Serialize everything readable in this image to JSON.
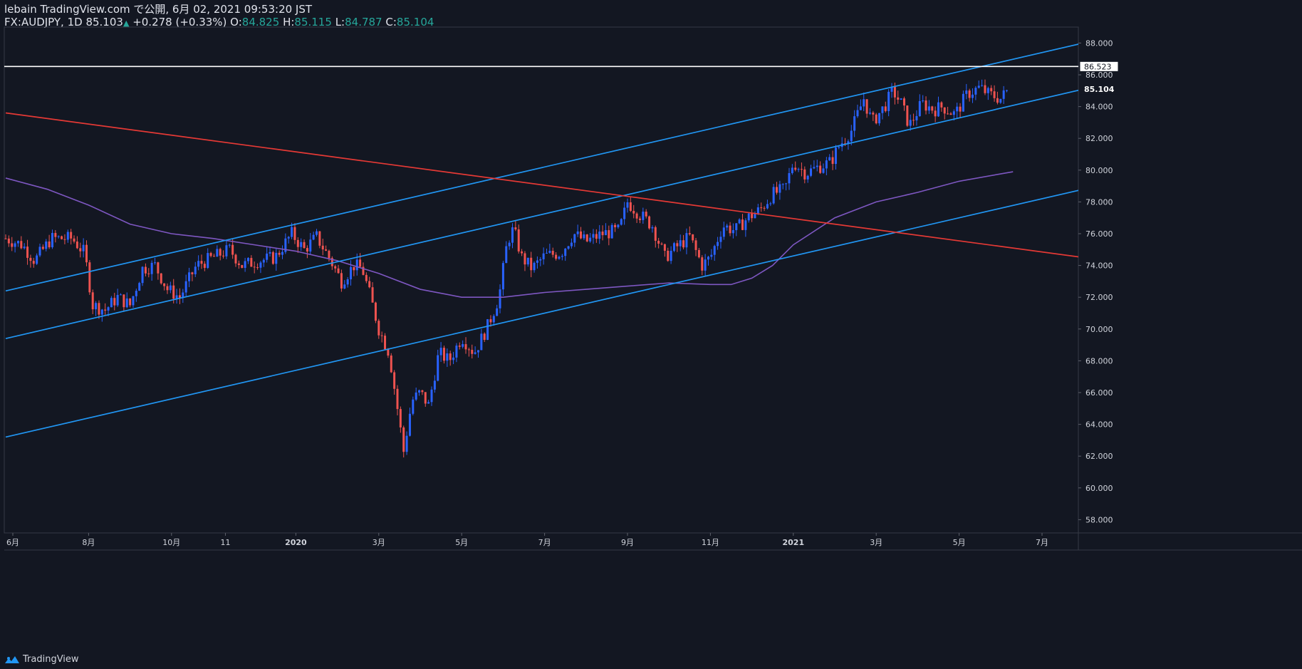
{
  "header": {
    "line1": "lebain TradingView.com で公開, 6月 02, 2021 09:53:20 JST",
    "symbol": "FX:AUDJPY, 1D 85.103",
    "change": "+0.278 (+0.33%)",
    "o_label": "O:",
    "o_value": "84.825",
    "h_label": "H:",
    "h_value": "85.115",
    "l_label": "L:",
    "l_value": "84.787",
    "c_label": "C:",
    "c_value": "85.104"
  },
  "footer": {
    "brand": "TradingView"
  },
  "colors": {
    "background": "#131722",
    "up": "#2962ff",
    "down": "#ef5350",
    "channel": "#2196f3",
    "trendline": "#e53935",
    "ma": "#7e57c2",
    "grid_text": "#d1d4dc",
    "teal": "#26a69a"
  },
  "chart_data": {
    "type": "candlestick",
    "title": "FX:AUDJPY, 1D",
    "y_range": [
      57,
      89
    ],
    "y_ticks": [
      "88.000",
      "86.000",
      "84.000",
      "82.000",
      "80.000",
      "78.000",
      "76.000",
      "74.000",
      "72.000",
      "70.000",
      "68.000",
      "66.000",
      "64.000",
      "62.000",
      "60.000",
      "58.000"
    ],
    "y_tick_values": [
      88,
      86,
      84,
      82,
      80,
      78,
      76,
      74,
      72,
      70,
      68,
      66,
      64,
      62,
      60,
      58
    ],
    "x_range": [
      0,
      26
    ],
    "x_ticks": [
      {
        "label": "6月",
        "t": 0
      },
      {
        "label": "8月",
        "t": 2
      },
      {
        "label": "10月",
        "t": 4
      },
      {
        "label": "11",
        "t": 5.3
      },
      {
        "label": "2020",
        "t": 7
      },
      {
        "label": "3月",
        "t": 9
      },
      {
        "label": "5月",
        "t": 11
      },
      {
        "label": "7月",
        "t": 13
      },
      {
        "label": "9月",
        "t": 15
      },
      {
        "label": "11月",
        "t": 17
      },
      {
        "label": "2021",
        "t": 19
      },
      {
        "label": "3月",
        "t": 21
      },
      {
        "label": "5月",
        "t": 23
      },
      {
        "label": "7月",
        "t": 25
      }
    ],
    "price_path": [
      [
        0,
        75.7
      ],
      [
        0.4,
        75.3
      ],
      [
        0.7,
        74.3
      ],
      [
        1.1,
        75.7
      ],
      [
        1.6,
        75.7
      ],
      [
        1.9,
        74.8
      ],
      [
        2.1,
        71.5
      ],
      [
        2.4,
        71.2
      ],
      [
        2.7,
        72.0
      ],
      [
        3.0,
        71.5
      ],
      [
        3.3,
        73.8
      ],
      [
        3.6,
        74.0
      ],
      [
        3.9,
        72.5
      ],
      [
        4.2,
        72.0
      ],
      [
        4.6,
        74.0
      ],
      [
        5.0,
        74.5
      ],
      [
        5.4,
        75.0
      ],
      [
        5.7,
        74.0
      ],
      [
        6.1,
        74.3
      ],
      [
        6.5,
        74.5
      ],
      [
        6.9,
        76.0
      ],
      [
        7.2,
        75.0
      ],
      [
        7.5,
        75.8
      ],
      [
        7.8,
        74.5
      ],
      [
        8.1,
        73.0
      ],
      [
        8.4,
        74.0
      ],
      [
        8.6,
        73.8
      ],
      [
        8.8,
        72.0
      ],
      [
        9.0,
        70.0
      ],
      [
        9.25,
        68.5
      ],
      [
        9.45,
        65.0
      ],
      [
        9.6,
        62.3
      ],
      [
        9.8,
        65.5
      ],
      [
        10.0,
        66.0
      ],
      [
        10.2,
        65.2
      ],
      [
        10.45,
        68.5
      ],
      [
        10.7,
        68.0
      ],
      [
        11.0,
        69.5
      ],
      [
        11.3,
        68.5
      ],
      [
        11.6,
        70.0
      ],
      [
        11.9,
        72.0
      ],
      [
        12.1,
        75.5
      ],
      [
        12.25,
        76.3
      ],
      [
        12.45,
        74.5
      ],
      [
        12.7,
        73.8
      ],
      [
        13.0,
        74.6
      ],
      [
        13.4,
        74.8
      ],
      [
        13.7,
        76.0
      ],
      [
        14.0,
        75.5
      ],
      [
        14.4,
        76.0
      ],
      [
        14.8,
        76.2
      ],
      [
        15.0,
        78.0
      ],
      [
        15.3,
        77.2
      ],
      [
        15.6,
        76.5
      ],
      [
        15.9,
        74.5
      ],
      [
        16.2,
        75.2
      ],
      [
        16.5,
        75.8
      ],
      [
        16.8,
        74.0
      ],
      [
        17.0,
        74.5
      ],
      [
        17.3,
        76.5
      ],
      [
        17.6,
        76.2
      ],
      [
        17.9,
        77.0
      ],
      [
        18.2,
        77.5
      ],
      [
        18.5,
        78.5
      ],
      [
        18.8,
        78.8
      ],
      [
        19.0,
        80.5
      ],
      [
        19.3,
        79.8
      ],
      [
        19.6,
        80.2
      ],
      [
        19.9,
        80.5
      ],
      [
        20.1,
        81.5
      ],
      [
        20.4,
        82.5
      ],
      [
        20.7,
        84.5
      ],
      [
        20.9,
        83.0
      ],
      [
        21.2,
        84.0
      ],
      [
        21.4,
        85.0
      ],
      [
        21.6,
        84.2
      ],
      [
        21.8,
        82.8
      ],
      [
        22.1,
        84.2
      ],
      [
        22.4,
        83.8
      ],
      [
        22.6,
        84.0
      ],
      [
        22.9,
        83.5
      ],
      [
        23.2,
        84.8
      ],
      [
        23.5,
        85.2
      ],
      [
        23.7,
        84.8
      ],
      [
        24.0,
        84.5
      ],
      [
        24.2,
        85.1
      ]
    ],
    "lines": [
      {
        "name": "upper-channel-line",
        "color": "#2196f3",
        "from": [
          0,
          72.4
        ],
        "to": [
          26,
          88.0
        ]
      },
      {
        "name": "middle-channel-line",
        "color": "#2196f3",
        "from": [
          0,
          69.4
        ],
        "to": [
          26,
          85.1
        ]
      },
      {
        "name": "lower-channel-line",
        "color": "#2196f3",
        "from": [
          0,
          63.2
        ],
        "to": [
          26,
          78.8
        ]
      },
      {
        "name": "red-trendline",
        "color": "#e53935",
        "from": [
          0,
          83.6
        ],
        "to": [
          26,
          74.5
        ]
      }
    ],
    "moving_average": [
      [
        0,
        79.5
      ],
      [
        1,
        78.8
      ],
      [
        2,
        77.8
      ],
      [
        3,
        76.6
      ],
      [
        4,
        76.0
      ],
      [
        5,
        75.7
      ],
      [
        6,
        75.3
      ],
      [
        7,
        74.9
      ],
      [
        8,
        74.3
      ],
      [
        9,
        73.5
      ],
      [
        10,
        72.5
      ],
      [
        11,
        72.0
      ],
      [
        12,
        72.0
      ],
      [
        13,
        72.3
      ],
      [
        14,
        72.5
      ],
      [
        15,
        72.7
      ],
      [
        16,
        72.9
      ],
      [
        17,
        72.8
      ],
      [
        17.5,
        72.8
      ],
      [
        18,
        73.2
      ],
      [
        18.5,
        74.0
      ],
      [
        19,
        75.3
      ],
      [
        20,
        77.0
      ],
      [
        21,
        78.0
      ],
      [
        22,
        78.6
      ],
      [
        23,
        79.3
      ],
      [
        24.3,
        79.9
      ]
    ],
    "horizontal_line": {
      "value": 86.523,
      "label": "86.523",
      "color": "#ffffff"
    },
    "last_price": {
      "value": 85.104,
      "label": "85.104"
    }
  }
}
